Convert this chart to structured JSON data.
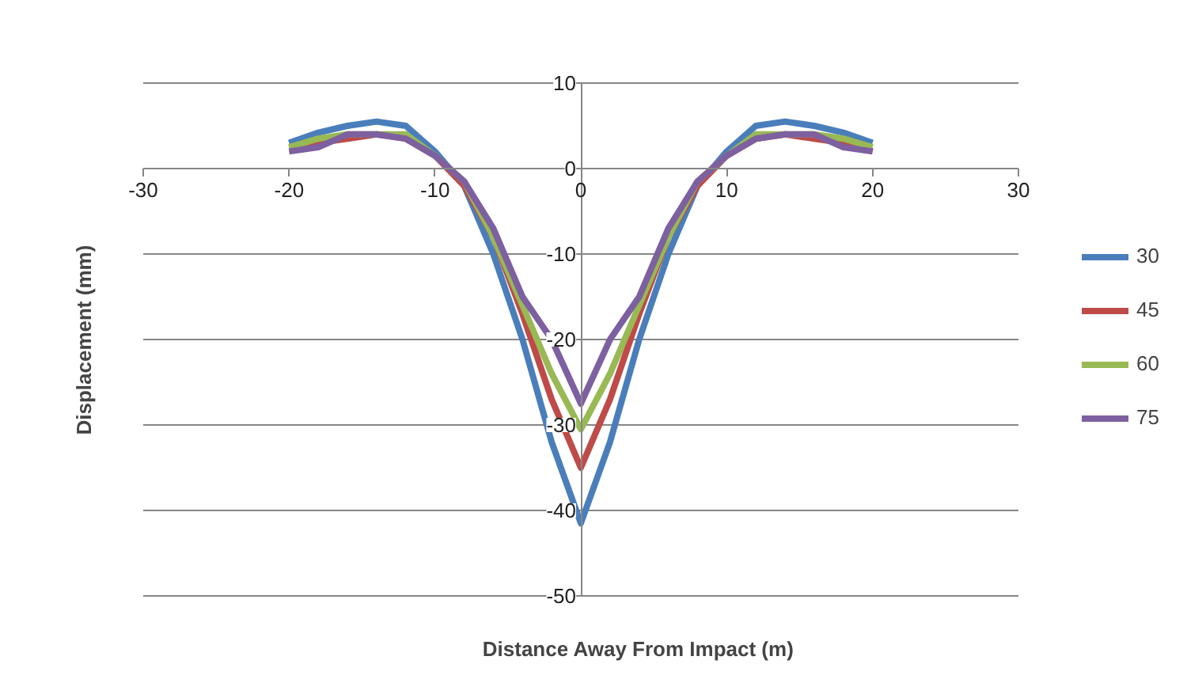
{
  "chart_data": {
    "type": "line",
    "xlabel": "Distance  Away From Impact  (m)",
    "ylabel": "Displacement  (mm)",
    "x": [
      -20,
      -18,
      -16,
      -14,
      -12,
      -10,
      -8,
      -6,
      -4,
      -2,
      0,
      2,
      4,
      6,
      8,
      10,
      12,
      14,
      16,
      18,
      20
    ],
    "series": [
      {
        "name": "30",
        "color": "#4a7ebb",
        "values": [
          3,
          4.2,
          5,
          5.5,
          5,
          2,
          -2,
          -10,
          -20,
          -32,
          -41.5,
          -32,
          -20,
          -10,
          -2,
          2,
          5,
          5.5,
          5,
          4.2,
          3
        ]
      },
      {
        "name": "45",
        "color": "#be4b48",
        "values": [
          2.5,
          3,
          3.5,
          4,
          3.5,
          1.5,
          -2,
          -8,
          -17,
          -27,
          -35,
          -27,
          -17,
          -8,
          -2,
          1.5,
          3.5,
          4,
          3.5,
          3,
          2
        ]
      },
      {
        "name": "60",
        "color": "#98b954",
        "values": [
          2.5,
          3.5,
          4,
          4,
          4,
          1.5,
          -1.5,
          -8,
          -16,
          -24,
          -30.5,
          -24,
          -16,
          -8,
          -1.5,
          1.5,
          4,
          4,
          4,
          3.5,
          2.5
        ]
      },
      {
        "name": "75",
        "color": "#7d60a0",
        "values": [
          2,
          2.5,
          4,
          4,
          3.5,
          1.5,
          -1.5,
          -7,
          -15,
          -20,
          -27.5,
          -20,
          -15,
          -7,
          -1.5,
          1.5,
          3.5,
          4,
          4,
          2.5,
          2
        ]
      }
    ],
    "xlim": [
      -30,
      30
    ],
    "xticks": [
      -30,
      -20,
      -10,
      0,
      10,
      20,
      30
    ],
    "ylim": [
      -50,
      10
    ],
    "yticks": [
      -50,
      -40,
      -30,
      -20,
      -10,
      0,
      10
    ],
    "grid": "y",
    "legend": "right",
    "marker": "none",
    "line_style": "solid"
  }
}
